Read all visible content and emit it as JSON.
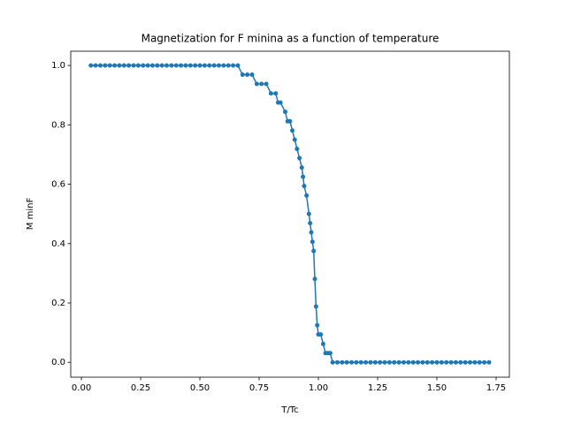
{
  "chart_data": {
    "type": "line",
    "title": "Magnetization for F minina as a function of temperature",
    "x_label": "T/Tc",
    "y_label": "M minF",
    "color": "#1f77b4",
    "x": [
      0.04,
      0.06,
      0.08,
      0.1,
      0.12,
      0.14,
      0.16,
      0.18,
      0.2,
      0.22,
      0.24,
      0.26,
      0.28,
      0.3,
      0.32,
      0.34,
      0.36,
      0.38,
      0.4,
      0.42,
      0.44,
      0.46,
      0.48,
      0.5,
      0.52,
      0.54,
      0.56,
      0.58,
      0.6,
      0.62,
      0.64,
      0.66,
      0.68,
      0.7,
      0.72,
      0.74,
      0.76,
      0.78,
      0.8,
      0.82,
      0.83,
      0.84,
      0.86,
      0.87,
      0.88,
      0.89,
      0.9,
      0.91,
      0.92,
      0.93,
      0.935,
      0.94,
      0.95,
      0.96,
      0.965,
      0.97,
      0.975,
      0.98,
      0.985,
      0.99,
      0.995,
      1.0,
      1.01,
      1.02,
      1.03,
      1.04,
      1.05,
      1.06,
      1.08,
      1.1,
      1.12,
      1.14,
      1.16,
      1.18,
      1.2,
      1.22,
      1.24,
      1.26,
      1.28,
      1.3,
      1.32,
      1.34,
      1.36,
      1.38,
      1.4,
      1.42,
      1.44,
      1.46,
      1.48,
      1.5,
      1.52,
      1.54,
      1.56,
      1.58,
      1.6,
      1.62,
      1.64,
      1.66,
      1.68,
      1.7,
      1.72
    ],
    "values": [
      1,
      1,
      1,
      1,
      1,
      1,
      1,
      1,
      1,
      1,
      1,
      1,
      1,
      1,
      1,
      1,
      1,
      1,
      1,
      1,
      1,
      1,
      1,
      1,
      1,
      1,
      1,
      1,
      1,
      1,
      1,
      1,
      0.969,
      0.969,
      0.969,
      0.938,
      0.938,
      0.938,
      0.906,
      0.906,
      0.875,
      0.875,
      0.844,
      0.812,
      0.812,
      0.781,
      0.75,
      0.719,
      0.688,
      0.656,
      0.625,
      0.594,
      0.562,
      0.5,
      0.469,
      0.438,
      0.406,
      0.375,
      0.281,
      0.188,
      0.125,
      0.094,
      0.094,
      0.062,
      0.031,
      0.031,
      0.031,
      0,
      0,
      0,
      0,
      0,
      0,
      0,
      0,
      0,
      0,
      0,
      0,
      0,
      0,
      0,
      0,
      0,
      0,
      0,
      0,
      0,
      0,
      0,
      0,
      0,
      0,
      0,
      0,
      0,
      0,
      0,
      0,
      0,
      0
    ],
    "xlim": [
      -0.045,
      1.806
    ],
    "ylim": [
      -0.05,
      1.048
    ],
    "xticks": [
      {
        "value": 0,
        "label": "0.00"
      },
      {
        "value": 0.25,
        "label": "0.25"
      },
      {
        "value": 0.5,
        "label": "0.50"
      },
      {
        "value": 0.75,
        "label": "0.75"
      },
      {
        "value": 1,
        "label": "1.00"
      },
      {
        "value": 1.25,
        "label": "1.25"
      },
      {
        "value": 1.5,
        "label": "1.50"
      },
      {
        "value": 1.75,
        "label": "1.75"
      }
    ],
    "yticks": [
      {
        "value": 0,
        "label": "0.0"
      },
      {
        "value": 0.2,
        "label": "0.2"
      },
      {
        "value": 0.4,
        "label": "0.4"
      },
      {
        "value": 0.6,
        "label": "0.6"
      },
      {
        "value": 0.8,
        "label": "0.8"
      },
      {
        "value": 1,
        "label": "1.0"
      }
    ]
  }
}
